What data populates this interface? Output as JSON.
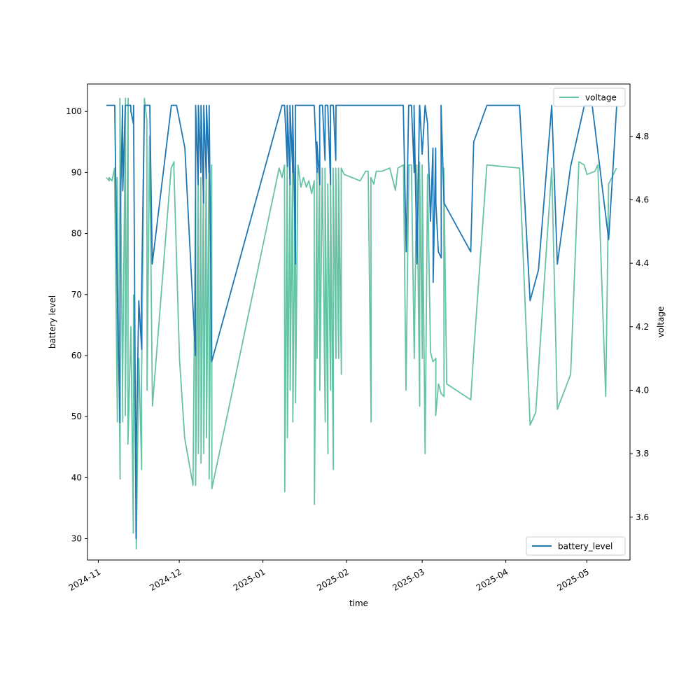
{
  "chart_data": {
    "type": "line",
    "title": "",
    "xlabel": "time",
    "ylabel_left": "battery level",
    "ylabel_right": "voltage",
    "grid": false,
    "x_range": [
      "2024-10-28",
      "2025-05-17"
    ],
    "ylim_left": [
      26.5,
      104.5
    ],
    "ylim_right": [
      3.465,
      4.965
    ],
    "x_ticks": [
      "2024-11",
      "2024-12",
      "2025-01",
      "2025-02",
      "2025-03",
      "2025-04",
      "2025-05"
    ],
    "y_ticks_left": [
      "30",
      "40",
      "50",
      "60",
      "70",
      "80",
      "90",
      "100"
    ],
    "y_ticks_right": [
      "3.6",
      "3.8",
      "4.0",
      "4.2",
      "4.4",
      "4.6",
      "4.8"
    ],
    "series": [
      {
        "name": "battery_level",
        "axis": "left",
        "color": "#1f77b4",
        "legend_position": "lower-right",
        "points": [
          [
            "2024-11-04",
            101
          ],
          [
            "2024-11-07",
            101
          ],
          [
            "2024-11-08",
            71
          ],
          [
            "2024-11-08",
            70
          ],
          [
            "2024-11-09",
            49
          ],
          [
            "2024-11-09",
            82
          ],
          [
            "2024-11-10",
            101
          ],
          [
            "2024-11-10",
            87
          ],
          [
            "2024-11-11",
            101
          ],
          [
            "2024-11-12",
            101
          ],
          [
            "2024-11-13",
            101
          ],
          [
            "2024-11-13",
            100
          ],
          [
            "2024-11-14",
            98
          ],
          [
            "2024-11-14",
            101
          ],
          [
            "2024-11-15",
            30
          ],
          [
            "2024-11-15",
            45
          ],
          [
            "2024-11-16",
            69
          ],
          [
            "2024-11-17",
            61
          ],
          [
            "2024-11-17",
            69
          ],
          [
            "2024-11-18",
            101
          ],
          [
            "2024-11-19",
            101
          ],
          [
            "2024-11-20",
            101
          ],
          [
            "2024-11-21",
            75
          ],
          [
            "2024-11-28",
            101
          ],
          [
            "2024-11-30",
            101
          ],
          [
            "2024-12-03",
            94
          ],
          [
            "2024-12-07",
            60
          ],
          [
            "2024-12-07",
            101
          ],
          [
            "2024-12-08",
            88
          ],
          [
            "2024-12-08",
            101
          ],
          [
            "2024-12-09",
            90
          ],
          [
            "2024-12-09",
            101
          ],
          [
            "2024-12-10",
            85
          ],
          [
            "2024-12-10",
            101
          ],
          [
            "2024-12-11",
            89
          ],
          [
            "2024-12-11",
            101
          ],
          [
            "2024-12-12",
            90
          ],
          [
            "2024-12-12",
            101
          ],
          [
            "2024-12-13",
            59
          ],
          [
            "2025-01-08",
            101
          ],
          [
            "2025-01-09",
            101
          ],
          [
            "2025-01-10",
            91
          ],
          [
            "2025-01-10",
            101
          ],
          [
            "2025-01-11",
            88
          ],
          [
            "2025-01-11",
            101
          ],
          [
            "2025-01-12",
            90
          ],
          [
            "2025-01-12",
            101
          ],
          [
            "2025-01-13",
            75
          ],
          [
            "2025-01-13",
            101
          ],
          [
            "2025-01-14",
            101
          ],
          [
            "2025-01-20",
            101
          ],
          [
            "2025-01-21",
            90
          ],
          [
            "2025-01-21",
            95
          ],
          [
            "2025-01-22",
            88
          ],
          [
            "2025-01-22",
            101
          ],
          [
            "2025-01-23",
            101
          ],
          [
            "2025-01-24",
            92
          ],
          [
            "2025-01-24",
            101
          ],
          [
            "2025-01-25",
            101
          ],
          [
            "2025-01-26",
            88
          ],
          [
            "2025-01-26",
            101
          ],
          [
            "2025-01-27",
            101
          ],
          [
            "2025-01-28",
            92
          ],
          [
            "2025-01-28",
            101
          ],
          [
            "2025-01-30",
            101
          ],
          [
            "2025-02-12",
            101
          ],
          [
            "2025-02-22",
            101
          ],
          [
            "2025-02-23",
            77
          ],
          [
            "2025-02-24",
            101
          ],
          [
            "2025-02-24",
            101
          ],
          [
            "2025-02-25",
            101
          ],
          [
            "2025-02-26",
            90
          ],
          [
            "2025-02-26",
            101
          ],
          [
            "2025-02-27",
            75
          ],
          [
            "2025-02-28",
            101
          ],
          [
            "2025-02-28",
            101
          ],
          [
            "2025-03-01",
            93
          ],
          [
            "2025-03-02",
            101
          ],
          [
            "2025-03-03",
            98
          ],
          [
            "2025-03-04",
            82
          ],
          [
            "2025-03-05",
            94
          ],
          [
            "2025-03-05",
            72
          ],
          [
            "2025-03-06",
            94
          ],
          [
            "2025-03-06",
            85
          ],
          [
            "2025-03-07",
            77
          ],
          [
            "2025-03-08",
            76
          ],
          [
            "2025-03-08",
            101
          ],
          [
            "2025-03-09",
            85
          ],
          [
            "2025-03-19",
            77
          ],
          [
            "2025-03-20",
            95
          ],
          [
            "2025-03-25",
            101
          ],
          [
            "2025-04-06",
            101
          ],
          [
            "2025-04-10",
            69
          ],
          [
            "2025-04-13",
            74
          ],
          [
            "2025-04-18",
            101
          ],
          [
            "2025-04-20",
            75
          ],
          [
            "2025-04-25",
            91
          ],
          [
            "2025-04-30",
            101
          ],
          [
            "2025-05-03",
            101
          ],
          [
            "2025-05-09",
            79
          ],
          [
            "2025-05-11",
            93
          ],
          [
            "2025-05-12",
            101
          ]
        ]
      },
      {
        "name": "voltage",
        "axis": "right",
        "color": "#66c2a5",
        "legend_position": "upper-right",
        "points": [
          [
            "2024-11-04",
            4.67
          ],
          [
            "2024-11-05",
            4.66
          ],
          [
            "2024-11-05",
            4.67
          ],
          [
            "2024-11-06",
            4.66
          ],
          [
            "2024-11-07",
            4.7
          ],
          [
            "2024-11-08",
            3.9
          ],
          [
            "2024-11-08",
            4.67
          ],
          [
            "2024-11-09",
            3.72
          ],
          [
            "2024-11-09",
            4.92
          ],
          [
            "2024-11-10",
            3.9
          ],
          [
            "2024-11-10",
            4.0
          ],
          [
            "2024-11-11",
            4.92
          ],
          [
            "2024-11-11",
            3.92
          ],
          [
            "2024-11-12",
            4.92
          ],
          [
            "2024-11-12",
            3.83
          ],
          [
            "2024-11-13",
            4.2
          ],
          [
            "2024-11-14",
            3.55
          ],
          [
            "2024-11-14",
            4.3
          ],
          [
            "2024-11-15",
            3.62
          ],
          [
            "2024-11-15",
            3.5
          ],
          [
            "2024-11-16",
            4.1
          ],
          [
            "2024-11-17",
            3.75
          ],
          [
            "2024-11-17",
            4.0
          ],
          [
            "2024-11-18",
            4.92
          ],
          [
            "2024-11-19",
            4.85
          ],
          [
            "2024-11-19",
            4.0
          ],
          [
            "2024-11-20",
            4.8
          ],
          [
            "2024-11-21",
            3.95
          ],
          [
            "2024-11-28",
            4.7
          ],
          [
            "2024-11-29",
            4.72
          ],
          [
            "2024-11-29",
            4.7
          ],
          [
            "2024-12-01",
            4.1
          ],
          [
            "2024-12-03",
            3.85
          ],
          [
            "2024-12-06",
            3.7
          ],
          [
            "2024-12-07",
            4.6
          ],
          [
            "2024-12-07",
            3.7
          ],
          [
            "2024-12-08",
            4.67
          ],
          [
            "2024-12-08",
            3.8
          ],
          [
            "2024-12-09",
            4.67
          ],
          [
            "2024-12-09",
            3.77
          ],
          [
            "2024-12-10",
            4.72
          ],
          [
            "2024-12-10",
            3.8
          ],
          [
            "2024-12-11",
            4.72
          ],
          [
            "2024-12-11",
            3.85
          ],
          [
            "2024-12-12",
            4.71
          ],
          [
            "2024-12-12",
            3.72
          ],
          [
            "2024-12-13",
            4.71
          ],
          [
            "2024-12-13",
            3.69
          ],
          [
            "2025-01-07",
            4.7
          ],
          [
            "2025-01-08",
            4.67
          ],
          [
            "2025-01-09",
            4.71
          ],
          [
            "2025-01-09",
            3.68
          ],
          [
            "2025-01-10",
            4.72
          ],
          [
            "2025-01-10",
            3.85
          ],
          [
            "2025-01-11",
            4.71
          ],
          [
            "2025-01-11",
            4.0
          ],
          [
            "2025-01-12",
            4.72
          ],
          [
            "2025-01-12",
            3.9
          ],
          [
            "2025-01-13",
            4.7
          ],
          [
            "2025-01-13",
            3.96
          ],
          [
            "2025-01-14",
            4.71
          ],
          [
            "2025-01-15",
            4.64
          ],
          [
            "2025-01-16",
            4.67
          ],
          [
            "2025-01-17",
            4.64
          ],
          [
            "2025-01-18",
            4.66
          ],
          [
            "2025-01-19",
            4.62
          ],
          [
            "2025-01-20",
            4.66
          ],
          [
            "2025-01-20",
            3.64
          ],
          [
            "2025-01-21",
            4.7
          ],
          [
            "2025-01-21",
            4.1
          ],
          [
            "2025-01-22",
            4.72
          ],
          [
            "2025-01-22",
            4.0
          ],
          [
            "2025-01-23",
            4.7
          ],
          [
            "2025-01-24",
            3.9
          ],
          [
            "2025-01-24",
            4.7
          ],
          [
            "2025-01-25",
            3.8
          ],
          [
            "2025-01-25",
            4.65
          ],
          [
            "2025-01-26",
            4.0
          ],
          [
            "2025-01-26",
            4.7
          ],
          [
            "2025-01-27",
            3.75
          ],
          [
            "2025-01-27",
            4.7
          ],
          [
            "2025-01-28",
            4.1
          ],
          [
            "2025-01-28",
            4.7
          ],
          [
            "2025-01-29",
            4.1
          ],
          [
            "2025-01-29",
            4.7
          ],
          [
            "2025-01-30",
            4.05
          ],
          [
            "2025-01-30",
            4.7
          ],
          [
            "2025-01-31",
            4.68
          ],
          [
            "2025-02-06",
            4.66
          ],
          [
            "2025-02-08",
            4.69
          ],
          [
            "2025-02-09",
            4.69
          ],
          [
            "2025-02-10",
            3.9
          ],
          [
            "2025-02-10",
            4.67
          ],
          [
            "2025-02-11",
            4.65
          ],
          [
            "2025-02-12",
            4.69
          ],
          [
            "2025-02-14",
            4.69
          ],
          [
            "2025-02-17",
            4.7
          ],
          [
            "2025-02-19",
            4.63
          ],
          [
            "2025-02-20",
            4.7
          ],
          [
            "2025-02-22",
            4.71
          ],
          [
            "2025-02-23",
            4.0
          ],
          [
            "2025-02-24",
            4.71
          ],
          [
            "2025-02-25",
            4.71
          ],
          [
            "2025-02-26",
            4.1
          ],
          [
            "2025-02-27",
            4.71
          ],
          [
            "2025-02-28",
            3.95
          ],
          [
            "2025-02-28",
            4.72
          ],
          [
            "2025-03-01",
            4.1
          ],
          [
            "2025-03-01",
            4.71
          ],
          [
            "2025-03-02",
            3.8
          ],
          [
            "2025-03-03",
            4.68
          ],
          [
            "2025-03-04",
            4.12
          ],
          [
            "2025-03-05",
            4.09
          ],
          [
            "2025-03-06",
            4.1
          ],
          [
            "2025-03-06",
            3.92
          ],
          [
            "2025-03-07",
            4.02
          ],
          [
            "2025-03-08",
            3.99
          ],
          [
            "2025-03-09",
            3.98
          ],
          [
            "2025-03-09",
            4.7
          ],
          [
            "2025-03-10",
            4.02
          ],
          [
            "2025-03-19",
            3.97
          ],
          [
            "2025-03-20",
            4.12
          ],
          [
            "2025-03-25",
            4.71
          ],
          [
            "2025-04-06",
            4.7
          ],
          [
            "2025-04-10",
            3.89
          ],
          [
            "2025-04-12",
            3.93
          ],
          [
            "2025-04-18",
            4.7
          ],
          [
            "2025-04-20",
            3.94
          ],
          [
            "2025-04-25",
            4.05
          ],
          [
            "2025-04-28",
            4.72
          ],
          [
            "2025-04-30",
            4.71
          ],
          [
            "2025-05-01",
            4.68
          ],
          [
            "2025-05-04",
            4.69
          ],
          [
            "2025-05-05",
            4.71
          ],
          [
            "2025-05-08",
            3.98
          ],
          [
            "2025-05-09",
            4.65
          ],
          [
            "2025-05-12",
            4.7
          ]
        ]
      }
    ]
  }
}
